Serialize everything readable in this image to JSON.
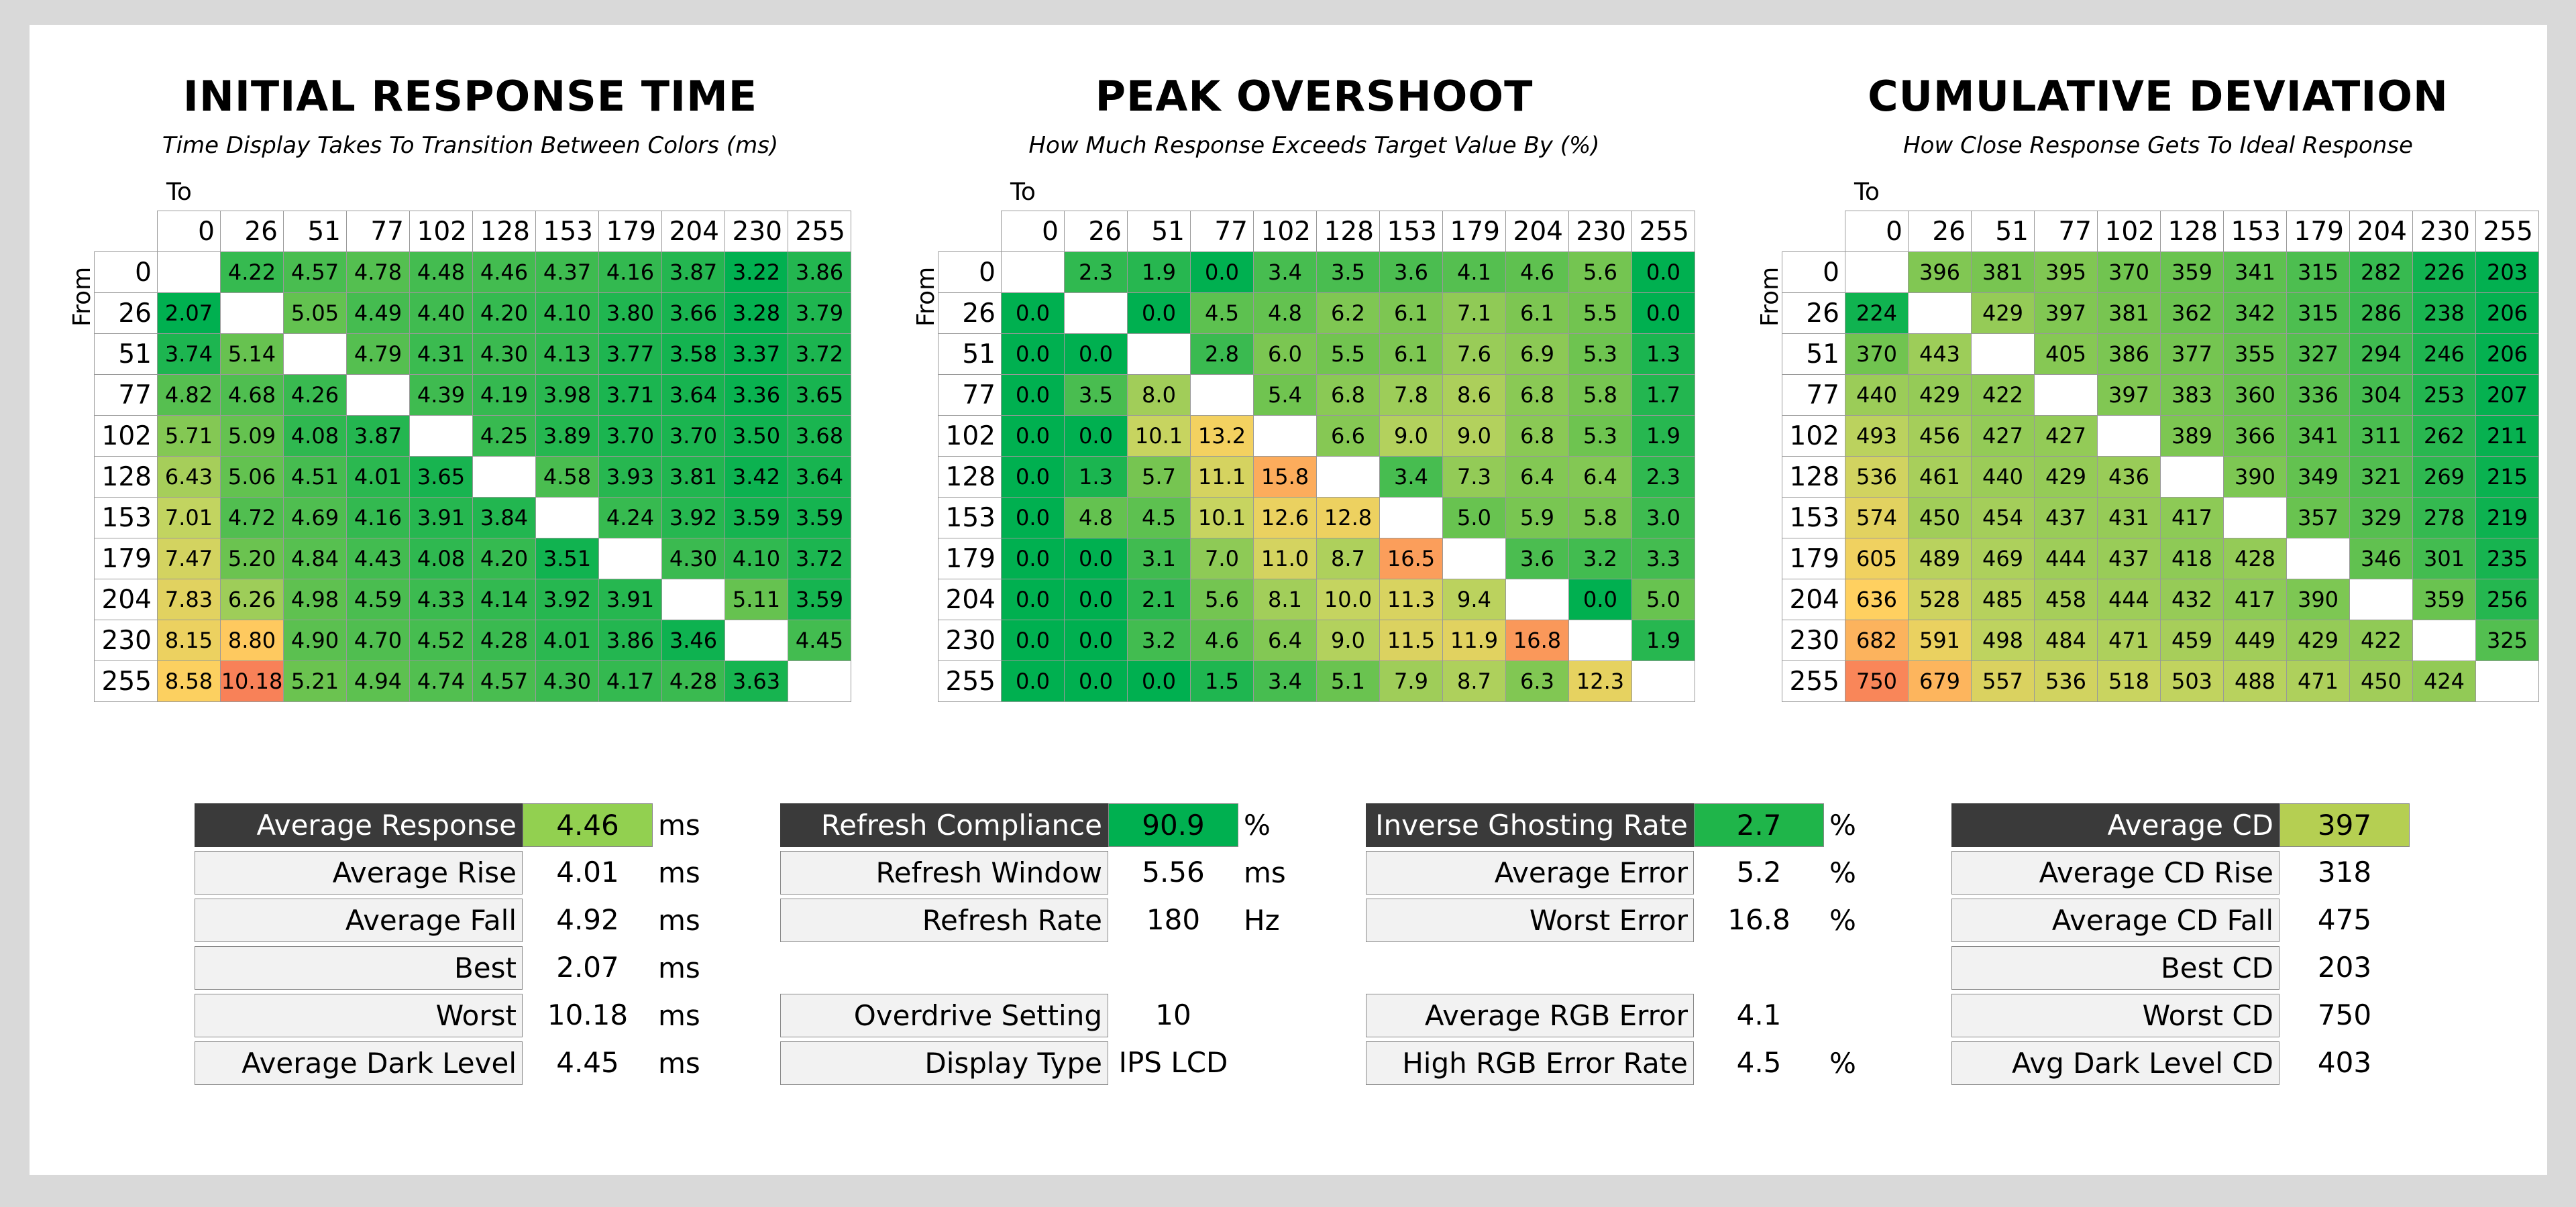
{
  "labels": {
    "to": "To",
    "from": "From"
  },
  "levels": [
    "0",
    "26",
    "51",
    "77",
    "102",
    "128",
    "153",
    "179",
    "204",
    "230",
    "255"
  ],
  "panels": [
    {
      "id": "irt",
      "title": "INITIAL RESPONSE TIME",
      "subtitle": "Time Display Takes To Transition Between Colors (ms)",
      "matrix": [
        [
          "",
          "4.22",
          "4.57",
          "4.78",
          "4.48",
          "4.46",
          "4.37",
          "4.16",
          "3.87",
          "3.22",
          "3.86"
        ],
        [
          "2.07",
          "",
          "5.05",
          "4.49",
          "4.40",
          "4.20",
          "4.10",
          "3.80",
          "3.66",
          "3.28",
          "3.79"
        ],
        [
          "3.74",
          "5.14",
          "",
          "4.79",
          "4.31",
          "4.30",
          "4.13",
          "3.77",
          "3.58",
          "3.37",
          "3.72"
        ],
        [
          "4.82",
          "4.68",
          "4.26",
          "",
          "4.39",
          "4.19",
          "3.98",
          "3.71",
          "3.64",
          "3.36",
          "3.65"
        ],
        [
          "5.71",
          "5.09",
          "4.08",
          "3.87",
          "",
          "4.25",
          "3.89",
          "3.70",
          "3.70",
          "3.50",
          "3.68"
        ],
        [
          "6.43",
          "5.06",
          "4.51",
          "4.01",
          "3.65",
          "",
          "4.58",
          "3.93",
          "3.81",
          "3.42",
          "3.64"
        ],
        [
          "7.01",
          "4.72",
          "4.69",
          "4.16",
          "3.91",
          "3.84",
          "",
          "4.24",
          "3.92",
          "3.59",
          "3.59"
        ],
        [
          "7.47",
          "5.20",
          "4.84",
          "4.43",
          "4.08",
          "4.20",
          "3.51",
          "",
          "4.30",
          "4.10",
          "3.72"
        ],
        [
          "7.83",
          "6.26",
          "4.98",
          "4.59",
          "4.33",
          "4.14",
          "3.92",
          "3.91",
          "",
          "5.11",
          "3.59"
        ],
        [
          "8.15",
          "8.80",
          "4.90",
          "4.70",
          "4.52",
          "4.28",
          "4.01",
          "3.86",
          "3.46",
          "",
          "4.45"
        ],
        [
          "8.58",
          "10.18",
          "5.21",
          "4.94",
          "4.74",
          "4.57",
          "4.30",
          "4.17",
          "4.28",
          "3.63",
          ""
        ]
      ],
      "scale": {
        "good": 3.2,
        "bad": 10.2
      }
    },
    {
      "id": "po",
      "title": "PEAK OVERSHOOT",
      "subtitle": "How Much Response Exceeds Target Value By (%)",
      "matrix": [
        [
          "",
          "2.3",
          "1.9",
          "0.0",
          "3.4",
          "3.5",
          "3.6",
          "4.1",
          "4.6",
          "5.6",
          "0.0"
        ],
        [
          "0.0",
          "",
          "0.0",
          "4.5",
          "4.8",
          "6.2",
          "6.1",
          "7.1",
          "6.1",
          "5.5",
          "0.0"
        ],
        [
          "0.0",
          "0.0",
          "",
          "2.8",
          "6.0",
          "5.5",
          "6.1",
          "7.6",
          "6.9",
          "5.3",
          "1.3"
        ],
        [
          "0.0",
          "3.5",
          "8.0",
          "",
          "5.4",
          "6.8",
          "7.8",
          "8.6",
          "6.8",
          "5.8",
          "1.7"
        ],
        [
          "0.0",
          "0.0",
          "10.1",
          "13.2",
          "",
          "6.6",
          "9.0",
          "9.0",
          "6.8",
          "5.3",
          "1.9"
        ],
        [
          "0.0",
          "1.3",
          "5.7",
          "11.1",
          "15.8",
          "",
          "3.4",
          "7.3",
          "6.4",
          "6.4",
          "2.3"
        ],
        [
          "0.0",
          "4.8",
          "4.5",
          "10.1",
          "12.6",
          "12.8",
          "",
          "5.0",
          "5.9",
          "5.8",
          "3.0"
        ],
        [
          "0.0",
          "0.0",
          "3.1",
          "7.0",
          "11.0",
          "8.7",
          "16.5",
          "",
          "3.6",
          "3.2",
          "3.3"
        ],
        [
          "0.0",
          "0.0",
          "2.1",
          "5.6",
          "8.1",
          "10.0",
          "11.3",
          "9.4",
          "",
          "0.0",
          "5.0"
        ],
        [
          "0.0",
          "0.0",
          "3.2",
          "4.6",
          "6.4",
          "9.0",
          "11.5",
          "11.9",
          "16.8",
          "",
          "1.9"
        ],
        [
          "0.0",
          "0.0",
          "0.0",
          "1.5",
          "3.4",
          "5.1",
          "7.9",
          "8.7",
          "6.3",
          "12.3",
          ""
        ]
      ],
      "scale": {
        "good": 0.0,
        "bad": 18.0
      }
    },
    {
      "id": "cd",
      "title": "CUMULATIVE DEVIATION",
      "subtitle": "How Close Response Gets To Ideal Response",
      "matrix": [
        [
          "",
          "396",
          "381",
          "395",
          "370",
          "359",
          "341",
          "315",
          "282",
          "226",
          "203"
        ],
        [
          "224",
          "",
          "429",
          "397",
          "381",
          "362",
          "342",
          "315",
          "286",
          "238",
          "206"
        ],
        [
          "370",
          "443",
          "",
          "405",
          "386",
          "377",
          "355",
          "327",
          "294",
          "246",
          "206"
        ],
        [
          "440",
          "429",
          "422",
          "",
          "397",
          "383",
          "360",
          "336",
          "304",
          "253",
          "207"
        ],
        [
          "493",
          "456",
          "427",
          "427",
          "",
          "389",
          "366",
          "341",
          "311",
          "262",
          "211"
        ],
        [
          "536",
          "461",
          "440",
          "429",
          "436",
          "",
          "390",
          "349",
          "321",
          "269",
          "215"
        ],
        [
          "574",
          "450",
          "454",
          "437",
          "431",
          "417",
          "",
          "357",
          "329",
          "278",
          "219"
        ],
        [
          "605",
          "489",
          "469",
          "444",
          "437",
          "418",
          "428",
          "",
          "346",
          "301",
          "235"
        ],
        [
          "636",
          "528",
          "485",
          "458",
          "444",
          "432",
          "417",
          "390",
          "",
          "359",
          "256"
        ],
        [
          "682",
          "591",
          "498",
          "484",
          "471",
          "459",
          "449",
          "429",
          "422",
          "",
          "325"
        ],
        [
          "750",
          "679",
          "557",
          "536",
          "518",
          "503",
          "488",
          "471",
          "450",
          "424",
          ""
        ]
      ],
      "scale": {
        "good": 200,
        "bad": 760
      }
    }
  ],
  "stats": {
    "response": [
      {
        "label": "Average Response",
        "value": "4.46",
        "unit": "ms",
        "header": true,
        "color": "#92d050"
      },
      {
        "label": "Average Rise",
        "value": "4.01",
        "unit": "ms"
      },
      {
        "label": "Average Fall",
        "value": "4.92",
        "unit": "ms"
      },
      {
        "label": "Best",
        "value": "2.07",
        "unit": "ms"
      },
      {
        "label": "Worst",
        "value": "10.18",
        "unit": "ms"
      },
      {
        "label": "Average Dark Level",
        "value": "4.45",
        "unit": "ms"
      }
    ],
    "refresh": [
      {
        "label": "Refresh Compliance",
        "value": "90.9",
        "unit": "%",
        "header": true,
        "color": "#00b050"
      },
      {
        "label": "Refresh Window",
        "value": "5.56",
        "unit": "ms"
      },
      {
        "label": "Refresh Rate",
        "value": "180",
        "unit": "Hz"
      },
      null,
      {
        "label": "Overdrive Setting",
        "value": "10",
        "unit": ""
      },
      {
        "label": "Display Type",
        "value": "IPS LCD",
        "unit": ""
      }
    ],
    "overshoot": [
      {
        "label": "Inverse Ghosting Rate",
        "value": "2.7",
        "unit": "%",
        "header": true,
        "color": "#1fb54a"
      },
      {
        "label": "Average Error",
        "value": "5.2",
        "unit": "%"
      },
      {
        "label": "Worst Error",
        "value": "16.8",
        "unit": "%"
      },
      null,
      {
        "label": "Average RGB Error",
        "value": "4.1",
        "unit": ""
      },
      {
        "label": "High RGB Error Rate",
        "value": "4.5",
        "unit": "%"
      }
    ],
    "cd": [
      {
        "label": "Average CD",
        "value": "397",
        "unit": "",
        "header": true,
        "color": "#b5cf52"
      },
      {
        "label": "Average CD Rise",
        "value": "318",
        "unit": ""
      },
      {
        "label": "Average CD Fall",
        "value": "475",
        "unit": ""
      },
      {
        "label": "Best CD",
        "value": "203",
        "unit": ""
      },
      {
        "label": "Worst CD",
        "value": "750",
        "unit": ""
      },
      {
        "label": "Avg Dark Level CD",
        "value": "403",
        "unit": ""
      }
    ]
  }
}
